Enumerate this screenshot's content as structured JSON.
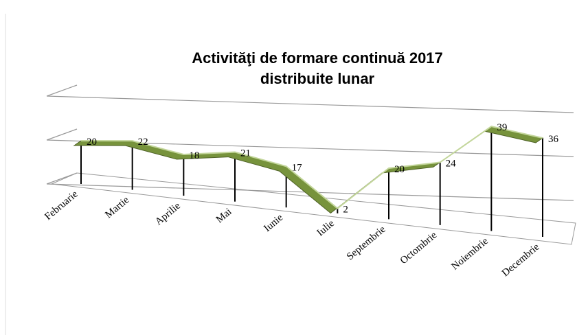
{
  "chart_data": {
    "type": "line",
    "title": [
      "Activităţi de formare continuă 2017",
      "distribuite lunar"
    ],
    "categories": [
      "Februarie",
      "Martie",
      "Aprilie",
      "Mai",
      "Iunie",
      "Iulie",
      "Septembrie",
      "Octombrie",
      "Noiembrie",
      "Decembrie"
    ],
    "values": [
      20,
      22,
      18,
      21,
      17,
      2,
      20,
      24,
      39,
      36
    ],
    "color": "#77933c",
    "ylim": [
      0,
      40
    ],
    "yticks": [
      0,
      20,
      40
    ],
    "grid": true
  }
}
